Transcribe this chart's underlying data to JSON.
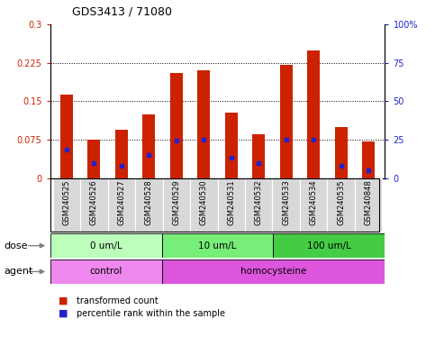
{
  "title": "GDS3413 / 71080",
  "samples": [
    "GSM240525",
    "GSM240526",
    "GSM240527",
    "GSM240528",
    "GSM240529",
    "GSM240530",
    "GSM240531",
    "GSM240532",
    "GSM240533",
    "GSM240534",
    "GSM240535",
    "GSM240848"
  ],
  "red_values": [
    0.163,
    0.075,
    0.095,
    0.125,
    0.205,
    0.21,
    0.128,
    0.085,
    0.22,
    0.248,
    0.1,
    0.072
  ],
  "blue_values": [
    0.055,
    0.03,
    0.025,
    0.045,
    0.073,
    0.075,
    0.04,
    0.03,
    0.075,
    0.075,
    0.025,
    0.015
  ],
  "ylim_left": [
    0,
    0.3
  ],
  "ylim_right": [
    0,
    100
  ],
  "yticks_left": [
    0,
    0.075,
    0.15,
    0.225,
    0.3
  ],
  "yticks_right": [
    0,
    25,
    50,
    75,
    100
  ],
  "ytick_labels_left": [
    "0",
    "0.075",
    "0.15",
    "0.225",
    "0.3"
  ],
  "ytick_labels_right": [
    "0",
    "25",
    "50",
    "75",
    "100%"
  ],
  "red_color": "#cc2200",
  "blue_color": "#2222cc",
  "dose_groups": [
    {
      "label": "0 um/L",
      "start": 0,
      "end": 4,
      "color": "#bbffbb"
    },
    {
      "label": "10 um/L",
      "start": 4,
      "end": 8,
      "color": "#77ee77"
    },
    {
      "label": "100 um/L",
      "start": 8,
      "end": 12,
      "color": "#44cc44"
    }
  ],
  "agent_groups": [
    {
      "label": "control",
      "start": 0,
      "end": 4,
      "color": "#ee88ee"
    },
    {
      "label": "homocysteine",
      "start": 4,
      "end": 12,
      "color": "#dd55dd"
    }
  ],
  "sample_bg_color": "#d8d8d8",
  "plot_bg_color": "#ffffff",
  "bar_width": 0.45
}
